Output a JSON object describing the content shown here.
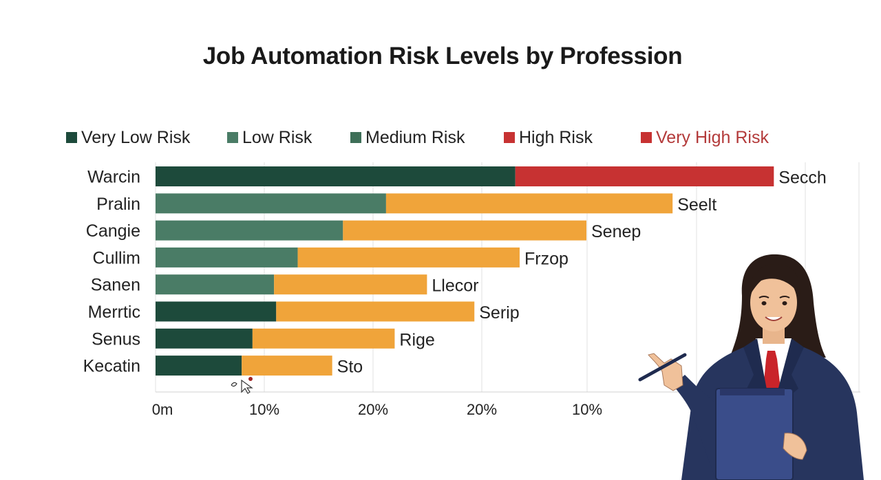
{
  "title": "Job Automation Risk Levels by Profession",
  "legend": [
    {
      "label": "Very Low Risk",
      "color": "#1d4a3b"
    },
    {
      "label": "Low Risk",
      "color": "#4a7c66"
    },
    {
      "label": "Medium Risk",
      "color": "#3e6f58"
    },
    {
      "label": "High Risk",
      "color": "#c73232"
    },
    {
      "label": "Very High Risk",
      "color": "#c73232",
      "text_color": "#b33a3a"
    }
  ],
  "chart_data": {
    "type": "bar",
    "orientation": "horizontal",
    "stacked": true,
    "title": "Job Automation Risk Levels by Profession",
    "categories": [
      "Warcin",
      "Pralin",
      "Cangie",
      "Cullim",
      "Sanen",
      "Merrtic",
      "Senus",
      "Kecatin"
    ],
    "end_labels": [
      "Secch",
      "Seelt",
      "Senep",
      "Frzop",
      "Llecor",
      "Serip",
      "Rige",
      "Sto"
    ],
    "x_ticks": [
      "0m",
      "10%",
      "20%",
      "20%",
      "10%"
    ],
    "grid": true,
    "legend_position": "top",
    "segment_colors": [
      "#1d4a3b",
      "#4a7c66",
      "#f0a43a",
      "#c73232"
    ],
    "bars": [
      {
        "category": "Warcin",
        "segments": [
          {
            "value": 16.7,
            "color": "#1d4a3b"
          },
          {
            "value": 12.0,
            "color": "#c73232"
          }
        ]
      },
      {
        "category": "Pralin",
        "segments": [
          {
            "value": 10.7,
            "color": "#4a7c66"
          },
          {
            "value": 13.3,
            "color": "#f0a43a"
          }
        ]
      },
      {
        "category": "Cangie",
        "segments": [
          {
            "value": 8.7,
            "color": "#4a7c66"
          },
          {
            "value": 11.3,
            "color": "#f0a43a"
          }
        ]
      },
      {
        "category": "Cullim",
        "segments": [
          {
            "value": 6.6,
            "color": "#4a7c66"
          },
          {
            "value": 10.3,
            "color": "#f0a43a"
          }
        ]
      },
      {
        "category": "Sanen",
        "segments": [
          {
            "value": 5.5,
            "color": "#4a7c66"
          },
          {
            "value": 7.1,
            "color": "#f0a43a"
          }
        ]
      },
      {
        "category": "Merrtic",
        "segments": [
          {
            "value": 5.6,
            "color": "#1d4a3b"
          },
          {
            "value": 9.2,
            "color": "#f0a43a"
          }
        ]
      },
      {
        "category": "Senus",
        "segments": [
          {
            "value": 4.5,
            "color": "#1d4a3b"
          },
          {
            "value": 6.6,
            "color": "#f0a43a"
          }
        ]
      },
      {
        "category": "Kecatin",
        "segments": [
          {
            "value": 4.0,
            "color": "#1d4a3b"
          },
          {
            "value": 4.2,
            "color": "#f0a43a"
          }
        ]
      }
    ]
  }
}
